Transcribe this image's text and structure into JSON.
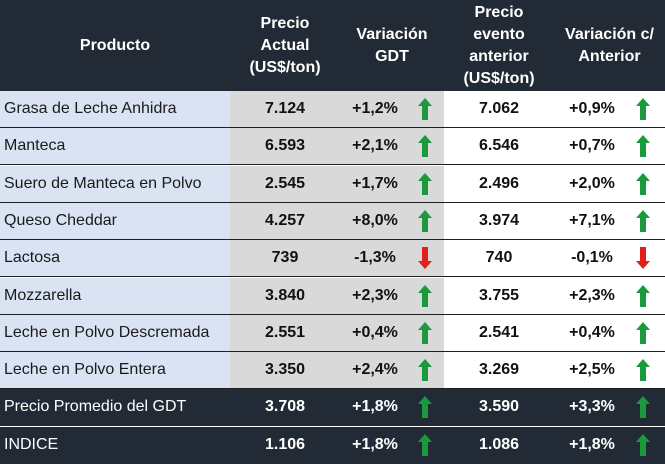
{
  "header": {
    "product": "Producto",
    "current_price": "Precio\nActual\n(US$/ton)",
    "gdt_change": "Variación\nGDT",
    "previous_price": "Precio\nevento\nanterior\n(US$/ton)",
    "prev_change": "Variación c/\nAnterior"
  },
  "colors": {
    "header_bg": "#222a35",
    "name_bg": "#dae3f3",
    "band_bg": "#d9d9d9",
    "up": "#1a9a3c",
    "down": "#e0201b"
  },
  "rows": [
    {
      "product": "Grasa de Leche Anhidra",
      "price": "7.124",
      "change": "+1,2%",
      "dir": "up",
      "prev_price": "7.062",
      "prev_change": "+0,9%",
      "prev_dir": "up"
    },
    {
      "product": "Manteca",
      "price": "6.593",
      "change": "+2,1%",
      "dir": "up",
      "prev_price": "6.546",
      "prev_change": "+0,7%",
      "prev_dir": "up"
    },
    {
      "product": "Suero de Manteca en Polvo",
      "price": "2.545",
      "change": "+1,7%",
      "dir": "up",
      "prev_price": "2.496",
      "prev_change": "+2,0%",
      "prev_dir": "up"
    },
    {
      "product": "Queso Cheddar",
      "price": "4.257",
      "change": "+8,0%",
      "dir": "up",
      "prev_price": "3.974",
      "prev_change": "+7,1%",
      "prev_dir": "up"
    },
    {
      "product": "Lactosa",
      "price": "739",
      "change": "-1,3%",
      "dir": "down",
      "prev_price": "740",
      "prev_change": "-0,1%",
      "prev_dir": "down"
    },
    {
      "product": "Mozzarella",
      "price": "3.840",
      "change": "+2,3%",
      "dir": "up",
      "prev_price": "3.755",
      "prev_change": "+2,3%",
      "prev_dir": "up"
    },
    {
      "product": "Leche en Polvo Descremada",
      "price": "2.551",
      "change": "+0,4%",
      "dir": "up",
      "prev_price": "2.541",
      "prev_change": "+0,4%",
      "prev_dir": "up"
    },
    {
      "product": "Leche en Polvo Entera",
      "price": "3.350",
      "change": "+2,4%",
      "dir": "up",
      "prev_price": "3.269",
      "prev_change": "+2,5%",
      "prev_dir": "up"
    },
    {
      "product": "Precio Promedio del GDT",
      "price": "3.708",
      "change": "+1,8%",
      "dir": "up",
      "prev_price": "3.590",
      "prev_change": "+3,3%",
      "prev_dir": "up",
      "dark": true
    },
    {
      "product": "INDICE",
      "price": "1.106",
      "change": "+1,8%",
      "dir": "up",
      "prev_price": "1.086",
      "prev_change": "+1,8%",
      "prev_dir": "up",
      "dark": true
    }
  ]
}
